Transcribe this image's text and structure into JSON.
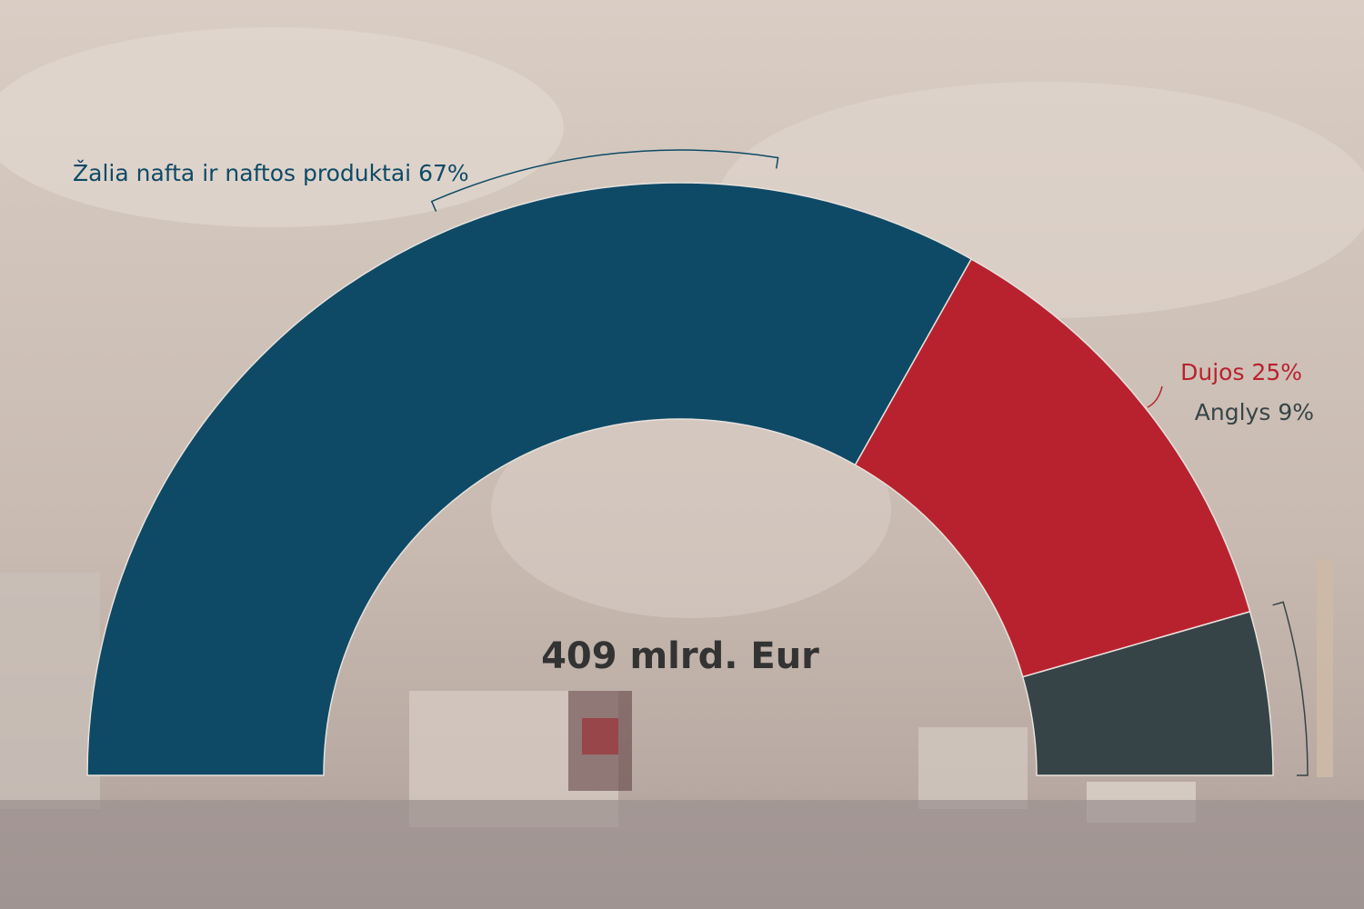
{
  "chart_data": {
    "type": "pie",
    "variant": "semicircle-donut",
    "total_label": "409 mlrd. Eur",
    "slices": [
      {
        "name": "Žalia nafta ir naftos produktai",
        "value": 67,
        "label": "Žalia nafta ir naftos produktai 67%",
        "color": "#0e4a66"
      },
      {
        "name": "Dujos",
        "value": 25,
        "label": "Dujos 25%",
        "color": "#b8222e"
      },
      {
        "name": "Anglys",
        "value": 9,
        "label": "Anglys 9%",
        "color": "#364447"
      }
    ],
    "label_colors": [
      "#0e4a66",
      "#b8222e",
      "#364447"
    ]
  }
}
